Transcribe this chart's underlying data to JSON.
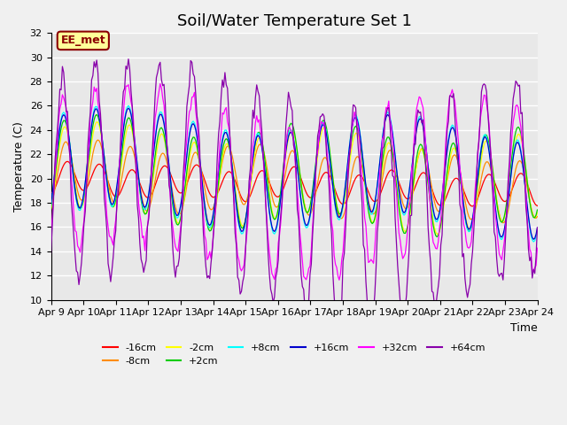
{
  "title": "Soil/Water Temperature Set 1",
  "xlabel": "Time",
  "ylabel": "Temperature (C)",
  "ylim": [
    10,
    32
  ],
  "yticks": [
    10,
    12,
    14,
    16,
    18,
    20,
    22,
    24,
    26,
    28,
    30,
    32
  ],
  "x_labels": [
    "Apr 9",
    "Apr 10",
    "Apr 11",
    "Apr 12",
    "Apr 13",
    "Apr 14",
    "Apr 15",
    "Apr 16",
    "Apr 17",
    "Apr 18",
    "Apr 19",
    "Apr 20",
    "Apr 21",
    "Apr 22",
    "Apr 23",
    "Apr 24"
  ],
  "annotation_text": "EE_met",
  "annotation_color": "#8B0000",
  "annotation_bg": "#FFFF99",
  "series_colors": {
    "-16cm": "#FF0000",
    "-8cm": "#FF8C00",
    "-2cm": "#FFFF00",
    "+2cm": "#00CC00",
    "+8cm": "#00FFFF",
    "+16cm": "#0000CC",
    "+32cm": "#FF00FF",
    "+64cm": "#8800AA"
  },
  "bg_color": "#E8E8E8",
  "grid_color": "#FFFFFF",
  "title_fontsize": 13,
  "tick_fontsize": 8,
  "label_fontsize": 9
}
